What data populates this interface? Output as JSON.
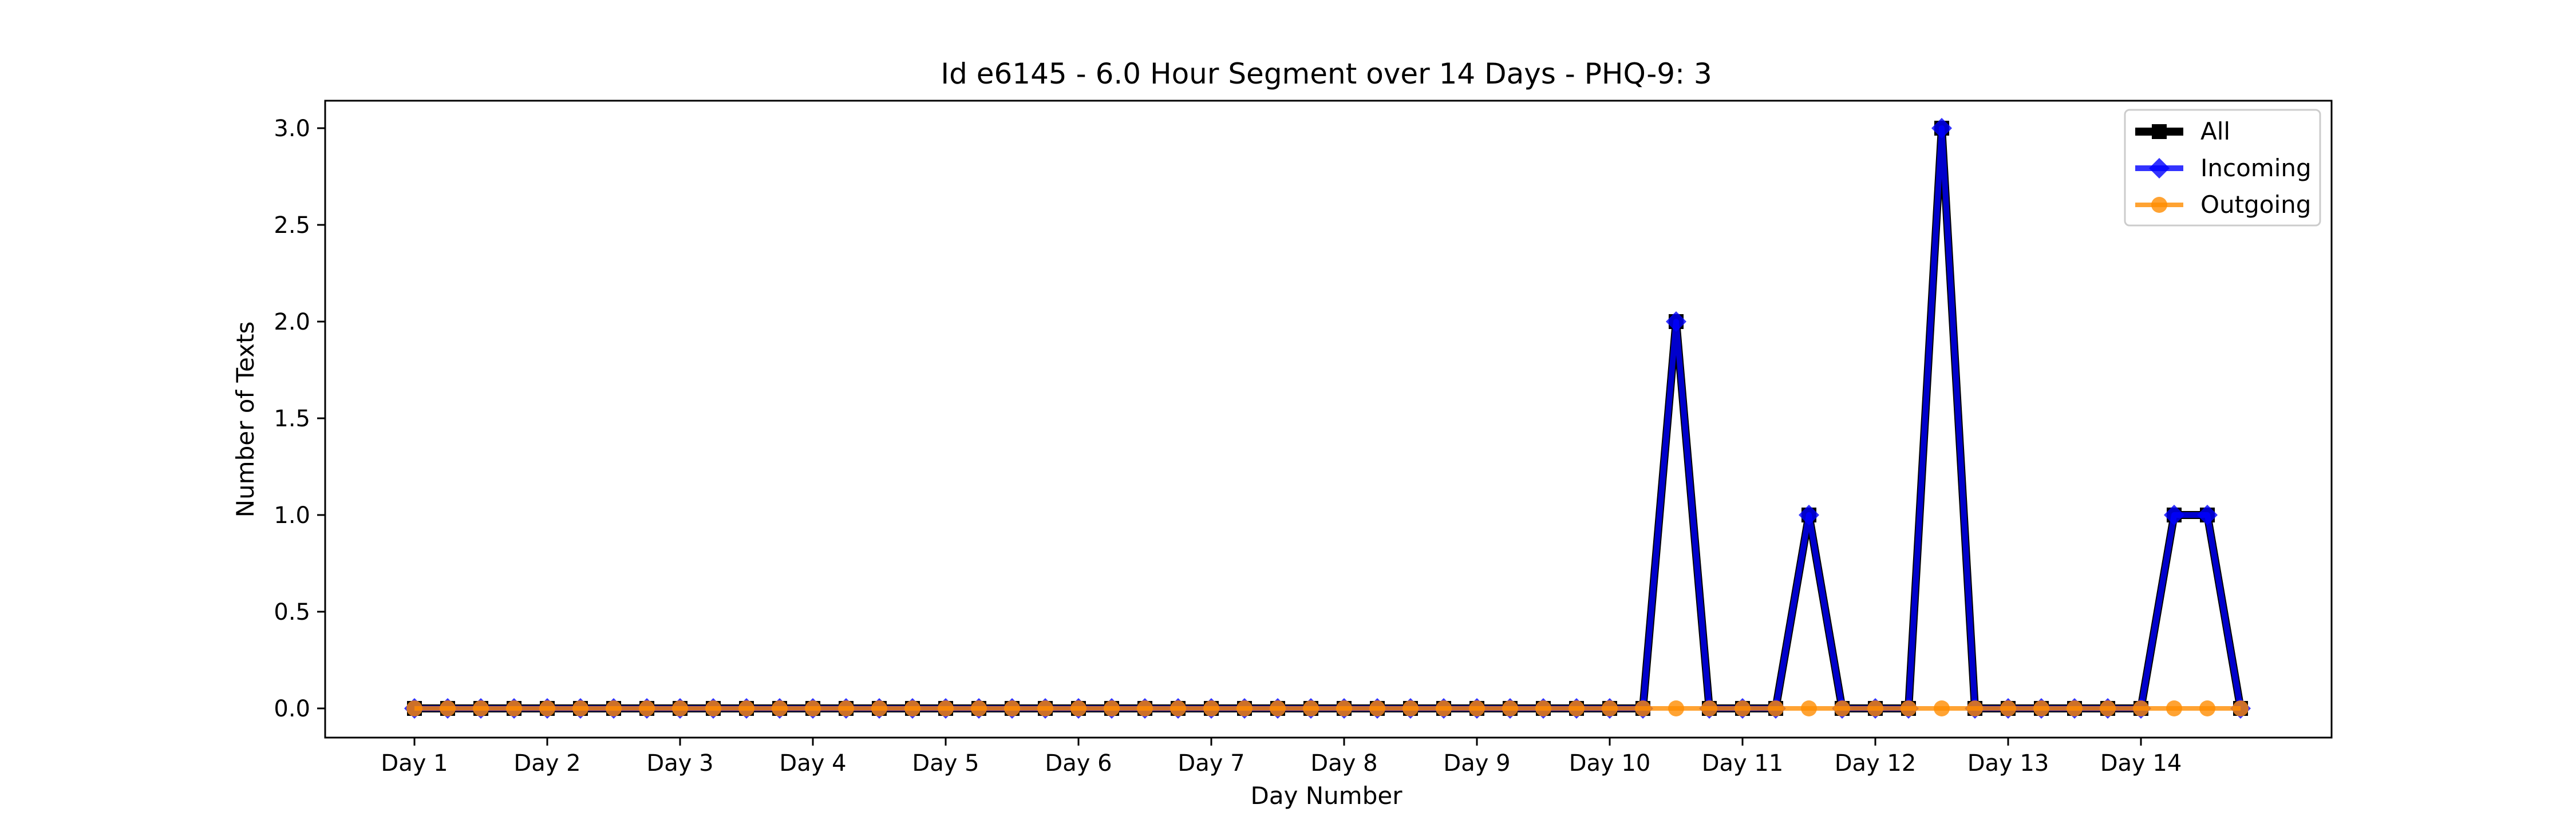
{
  "chart_data": {
    "type": "line",
    "title": "Id e6145 - 6.0 Hour Segment over 14 Days - PHQ-9: 3",
    "xlabel": "Day Number",
    "ylabel": "Number of Texts",
    "x_tick_labels": [
      "Day 1",
      "Day 2",
      "Day 3",
      "Day 4",
      "Day 5",
      "Day 6",
      "Day 7",
      "Day 8",
      "Day 9",
      "Day 10",
      "Day 11",
      "Day 12",
      "Day 13",
      "Day 14"
    ],
    "y_tick_labels": [
      "0.0",
      "0.5",
      "1.0",
      "1.5",
      "2.0",
      "2.5",
      "3.0"
    ],
    "ylim": [
      -0.15,
      3.15
    ],
    "grid": false,
    "legend_position": "top-right",
    "colors": {
      "All": "#000000",
      "Incoming": "#0000ff",
      "Outgoing": "#ff8c00",
      "axes": "#000000",
      "background": "#ffffff"
    },
    "series": [
      {
        "name": "All",
        "marker": "square",
        "values": [
          0,
          0,
          0,
          0,
          0,
          0,
          0,
          0,
          0,
          0,
          0,
          0,
          0,
          0,
          0,
          0,
          0,
          0,
          0,
          0,
          0,
          0,
          0,
          0,
          0,
          0,
          0,
          0,
          0,
          0,
          0,
          0,
          0,
          0,
          0,
          0,
          0,
          0,
          2,
          0,
          0,
          0,
          1,
          0,
          0,
          0,
          3,
          0,
          0,
          0,
          0,
          0,
          0,
          1,
          1,
          0
        ]
      },
      {
        "name": "Incoming",
        "marker": "diamond",
        "values": [
          0,
          0,
          0,
          0,
          0,
          0,
          0,
          0,
          0,
          0,
          0,
          0,
          0,
          0,
          0,
          0,
          0,
          0,
          0,
          0,
          0,
          0,
          0,
          0,
          0,
          0,
          0,
          0,
          0,
          0,
          0,
          0,
          0,
          0,
          0,
          0,
          0,
          0,
          2,
          0,
          0,
          0,
          1,
          0,
          0,
          0,
          3,
          0,
          0,
          0,
          0,
          0,
          0,
          1,
          1,
          0
        ]
      },
      {
        "name": "Outgoing",
        "marker": "circle",
        "values": [
          0,
          0,
          0,
          0,
          0,
          0,
          0,
          0,
          0,
          0,
          0,
          0,
          0,
          0,
          0,
          0,
          0,
          0,
          0,
          0,
          0,
          0,
          0,
          0,
          0,
          0,
          0,
          0,
          0,
          0,
          0,
          0,
          0,
          0,
          0,
          0,
          0,
          0,
          0,
          0,
          0,
          0,
          0,
          0,
          0,
          0,
          0,
          0,
          0,
          0,
          0,
          0,
          0,
          0,
          0,
          0
        ]
      }
    ]
  }
}
